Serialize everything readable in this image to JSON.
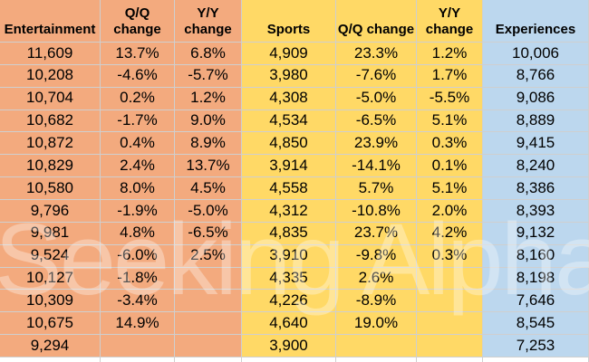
{
  "watermark": {
    "text": "Seeking Alpha"
  },
  "colors": {
    "entertainment_bg": "#F3AA7E",
    "sports_bg": "#FFD966",
    "experiences_bg": "#BCD7EE",
    "gridline": "#CFCFCF",
    "text": "#000000"
  },
  "table": {
    "columns": [
      {
        "key": "entertainment",
        "label": "Entertainment",
        "group": "entertainment"
      },
      {
        "key": "ent_qq_change",
        "label": "Q/Q change",
        "group": "entertainment"
      },
      {
        "key": "ent_yy_change",
        "label": "Y/Y change",
        "group": "entertainment"
      },
      {
        "key": "sports",
        "label": "Sports",
        "group": "sports"
      },
      {
        "key": "sports_qq_change",
        "label": "Q/Q change",
        "group": "sports"
      },
      {
        "key": "sports_yy_change",
        "label": "Y/Y change",
        "group": "sports"
      },
      {
        "key": "experiences",
        "label": "Experiences",
        "group": "experiences"
      }
    ],
    "rows": [
      [
        "11,609",
        "13.7%",
        "6.8%",
        "4,909",
        "23.3%",
        "1.2%",
        "10,006"
      ],
      [
        "10,208",
        "-4.6%",
        "-5.7%",
        "3,980",
        "-7.6%",
        "1.7%",
        "8,766"
      ],
      [
        "10,704",
        "0.2%",
        "1.2%",
        "4,308",
        "-5.0%",
        "-5.5%",
        "9,086"
      ],
      [
        "10,682",
        "-1.7%",
        "9.0%",
        "4,534",
        "-6.5%",
        "5.1%",
        "8,889"
      ],
      [
        "10,872",
        "0.4%",
        "8.9%",
        "4,850",
        "23.9%",
        "0.3%",
        "9,415"
      ],
      [
        "10,829",
        "2.4%",
        "13.7%",
        "3,914",
        "-14.1%",
        "0.1%",
        "8,240"
      ],
      [
        "10,580",
        "8.0%",
        "4.5%",
        "4,558",
        "5.7%",
        "5.1%",
        "8,386"
      ],
      [
        "9,796",
        "-1.9%",
        "-5.0%",
        "4,312",
        "-10.8%",
        "2.0%",
        "8,393"
      ],
      [
        "9,981",
        "4.8%",
        "-6.5%",
        "4,835",
        "23.7%",
        "4.2%",
        "9,132"
      ],
      [
        "9,524",
        "-6.0%",
        "2.5%",
        "3,910",
        "-9.8%",
        "0.3%",
        "8,160"
      ],
      [
        "10,127",
        "-1.8%",
        "",
        "4,335",
        "2.6%",
        "",
        "8,198"
      ],
      [
        "10,309",
        "-3.4%",
        "",
        "4,226",
        "-8.9%",
        "",
        "7,646"
      ],
      [
        "10,675",
        "14.9%",
        "",
        "4,640",
        "19.0%",
        "",
        "8,545"
      ],
      [
        "9,294",
        "",
        "",
        "3,900",
        "",
        "",
        "7,253"
      ]
    ]
  }
}
